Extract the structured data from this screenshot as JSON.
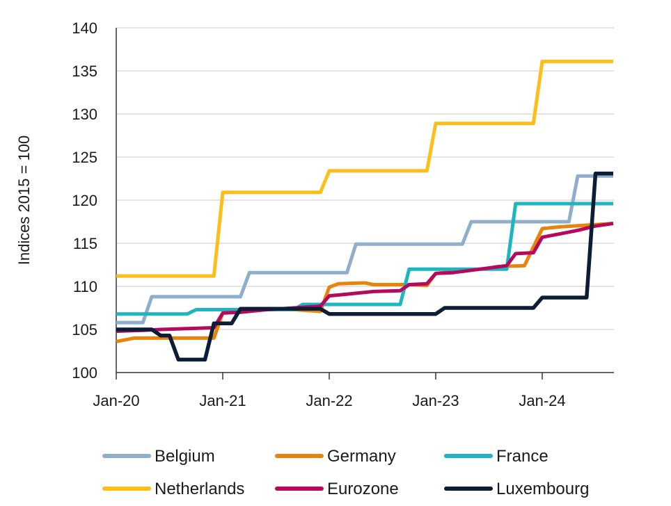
{
  "chart_data": {
    "type": "line",
    "title": "",
    "xlabel": "",
    "ylabel": "Indices 2015 = 100",
    "ylim": [
      100,
      140
    ],
    "yticks": [
      100,
      105,
      110,
      115,
      120,
      125,
      130,
      135,
      140
    ],
    "xlim": [
      "2020-01",
      "2024-09"
    ],
    "xticks": [
      "Jan-20",
      "Jan-21",
      "Jan-22",
      "Jan-23",
      "Jan-24"
    ],
    "grid": "horizontal",
    "legend_position": "bottom",
    "series": [
      {
        "name": "Belgium",
        "color": "#8FAECB",
        "line": "step",
        "points": [
          [
            "2020-01",
            105.8
          ],
          [
            "2020-04",
            105.8
          ],
          [
            "2020-05",
            108.8
          ],
          [
            "2021-01",
            108.8
          ],
          [
            "2021-03",
            108.8
          ],
          [
            "2021-04",
            111.6
          ],
          [
            "2022-03",
            111.6
          ],
          [
            "2022-04",
            114.9
          ],
          [
            "2023-04",
            114.9
          ],
          [
            "2023-05",
            117.5
          ],
          [
            "2024-04",
            117.5
          ],
          [
            "2024-05",
            122.8
          ],
          [
            "2024-09",
            122.8
          ]
        ]
      },
      {
        "name": "Germany",
        "color": "#E8830C",
        "line": "straight",
        "points": [
          [
            "2020-01",
            103.6
          ],
          [
            "2020-02",
            103.8
          ],
          [
            "2020-03",
            104.0
          ],
          [
            "2020-04",
            104.0
          ],
          [
            "2020-12",
            104.0
          ],
          [
            "2021-01",
            106.9
          ],
          [
            "2021-02",
            107.0
          ],
          [
            "2021-03",
            107.1
          ],
          [
            "2021-06",
            107.3
          ],
          [
            "2021-09",
            107.3
          ],
          [
            "2021-12",
            107.1
          ],
          [
            "2022-01",
            109.9
          ],
          [
            "2022-02",
            110.3
          ],
          [
            "2022-05",
            110.4
          ],
          [
            "2022-06",
            110.2
          ],
          [
            "2022-09",
            110.2
          ],
          [
            "2022-10",
            110.2
          ],
          [
            "2022-12",
            110.1
          ],
          [
            "2023-01",
            111.5
          ],
          [
            "2023-04",
            111.8
          ],
          [
            "2023-07",
            112.1
          ],
          [
            "2023-08",
            112.3
          ],
          [
            "2023-11",
            112.4
          ],
          [
            "2024-01",
            116.7
          ],
          [
            "2024-03",
            116.9
          ],
          [
            "2024-06",
            117.1
          ],
          [
            "2024-09",
            117.3
          ]
        ]
      },
      {
        "name": "France",
        "color": "#1DB5BF",
        "line": "step",
        "points": [
          [
            "2020-01",
            106.8
          ],
          [
            "2020-09",
            106.8
          ],
          [
            "2020-10",
            107.3
          ],
          [
            "2021-09",
            107.3
          ],
          [
            "2021-10",
            107.9
          ],
          [
            "2022-09",
            107.9
          ],
          [
            "2022-10",
            112.0
          ],
          [
            "2023-09",
            112.0
          ],
          [
            "2023-10",
            119.6
          ],
          [
            "2024-09",
            119.6
          ]
        ]
      },
      {
        "name": "Netherlands",
        "color": "#FDBE1A",
        "line": "step",
        "points": [
          [
            "2020-01",
            111.2
          ],
          [
            "2020-12",
            111.2
          ],
          [
            "2021-01",
            120.9
          ],
          [
            "2021-12",
            120.9
          ],
          [
            "2022-01",
            123.4
          ],
          [
            "2022-12",
            123.4
          ],
          [
            "2023-01",
            128.9
          ],
          [
            "2023-12",
            128.9
          ],
          [
            "2024-01",
            136.1
          ],
          [
            "2024-09",
            136.1
          ]
        ]
      },
      {
        "name": "Eurozone",
        "color": "#B5095E",
        "line": "straight",
        "points": [
          [
            "2020-01",
            104.8
          ],
          [
            "2020-04",
            104.9
          ],
          [
            "2020-06",
            105.0
          ],
          [
            "2020-09",
            105.1
          ],
          [
            "2020-12",
            105.2
          ],
          [
            "2021-01",
            106.9
          ],
          [
            "2021-03",
            107.0
          ],
          [
            "2021-06",
            107.3
          ],
          [
            "2021-09",
            107.5
          ],
          [
            "2021-12",
            107.7
          ],
          [
            "2022-01",
            108.9
          ],
          [
            "2022-03",
            109.1
          ],
          [
            "2022-06",
            109.4
          ],
          [
            "2022-09",
            109.5
          ],
          [
            "2022-10",
            110.2
          ],
          [
            "2022-12",
            110.3
          ],
          [
            "2023-01",
            111.5
          ],
          [
            "2023-03",
            111.6
          ],
          [
            "2023-06",
            112.0
          ],
          [
            "2023-09",
            112.4
          ],
          [
            "2023-10",
            113.8
          ],
          [
            "2023-12",
            113.9
          ],
          [
            "2024-01",
            115.7
          ],
          [
            "2024-03",
            116.1
          ],
          [
            "2024-05",
            116.5
          ],
          [
            "2024-07",
            117.0
          ],
          [
            "2024-09",
            117.3
          ]
        ]
      },
      {
        "name": "Luxembourg",
        "color": "#0B1E36",
        "line": "step",
        "points": [
          [
            "2020-01",
            105.0
          ],
          [
            "2020-05",
            105.0
          ],
          [
            "2020-06",
            104.3
          ],
          [
            "2020-07",
            104.3
          ],
          [
            "2020-08",
            101.5
          ],
          [
            "2020-11",
            101.5
          ],
          [
            "2020-12",
            105.7
          ],
          [
            "2021-02",
            105.7
          ],
          [
            "2021-03",
            107.4
          ],
          [
            "2021-12",
            107.4
          ],
          [
            "2022-01",
            106.8
          ],
          [
            "2022-12",
            106.8
          ],
          [
            "2023-01",
            106.8
          ],
          [
            "2023-02",
            107.5
          ],
          [
            "2023-12",
            107.5
          ],
          [
            "2024-01",
            108.7
          ],
          [
            "2024-06",
            108.7
          ],
          [
            "2024-07",
            123.1
          ],
          [
            "2024-09",
            123.1
          ]
        ]
      }
    ]
  }
}
